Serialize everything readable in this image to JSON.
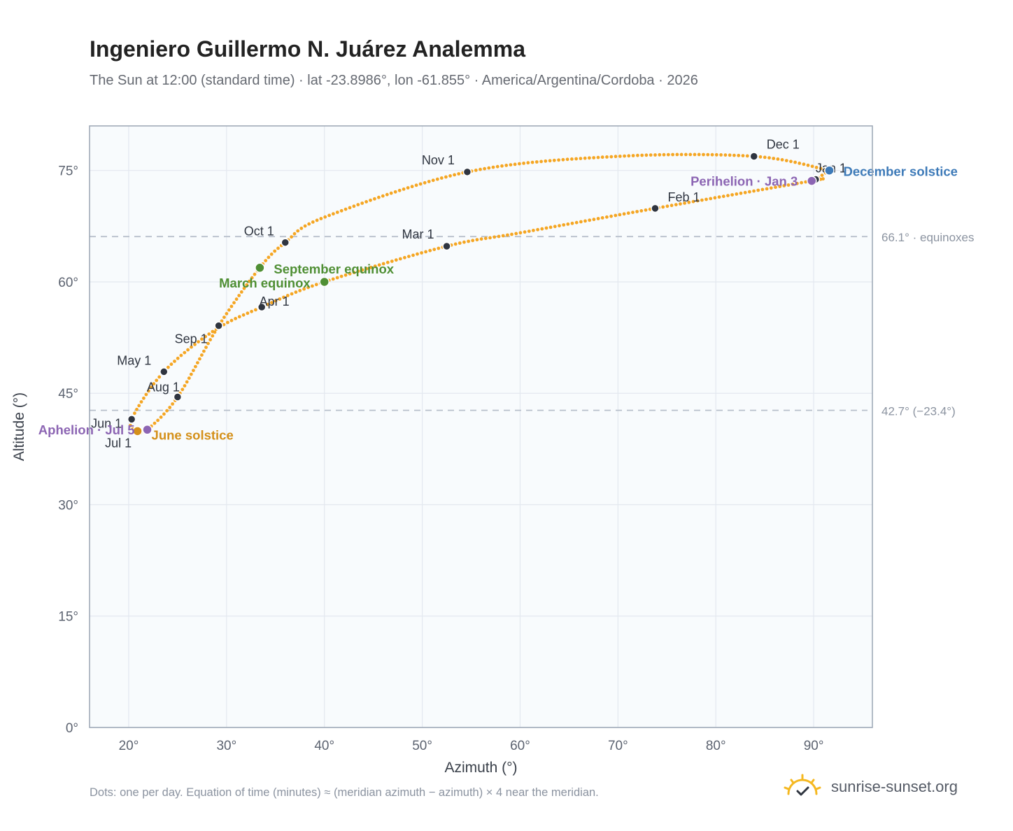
{
  "header": {
    "title": "Ingeniero Guillermo N. Juárez Analemma",
    "subtitle": "The Sun at 12:00 (standard time) · lat -23.8986°, lon -61.855° · America/Argentina/Cordoba · 2026"
  },
  "footer": {
    "note": "Dots: one per day. Equation of time (minutes) ≈ (meridian azimuth − azimuth) × 4 near the meridian.",
    "brand": "sunrise-sunset.org"
  },
  "colors": {
    "path": "#f5a623",
    "month_marker": "#2f3540",
    "solstice_june": "#d4901a",
    "solstice_december": "#3d7ab8",
    "equinox": "#4f8f34",
    "apsis": "#8c65b3",
    "reference_line": "#b8c0cc",
    "plot_background": "#f8fbfd"
  },
  "chart_data": {
    "type": "scatter",
    "xlabel": "Azimuth (°)",
    "ylabel": "Altitude (°)",
    "xlim": [
      16,
      96
    ],
    "ylim": [
      0,
      81
    ],
    "x_ticks": [
      20,
      30,
      40,
      50,
      60,
      70,
      80,
      90
    ],
    "y_ticks": [
      0,
      15,
      30,
      45,
      60,
      75
    ],
    "grid": true,
    "x_tick_suffix": "°",
    "y_tick_suffix": "°",
    "reference_lines": [
      {
        "y": 66.1,
        "label": "66.1° · equinoxes"
      },
      {
        "y": 42.7,
        "label": "42.7° (−23.4°)"
      }
    ],
    "month_markers": [
      {
        "label": "Jan 1",
        "x": 90.2,
        "y": 73.8
      },
      {
        "label": "Feb 1",
        "x": 73.8,
        "y": 69.9
      },
      {
        "label": "Mar 1",
        "x": 52.5,
        "y": 64.8
      },
      {
        "label": "Apr 1",
        "x": 33.6,
        "y": 56.6
      },
      {
        "label": "May 1",
        "x": 23.6,
        "y": 47.9
      },
      {
        "label": "Jun 1",
        "x": 20.3,
        "y": 41.5
      },
      {
        "label": "Jul 1",
        "x": 20.8,
        "y": 39.8
      },
      {
        "label": "Aug 1",
        "x": 25.0,
        "y": 44.5
      },
      {
        "label": "Sep 1",
        "x": 29.2,
        "y": 54.1
      },
      {
        "label": "Oct 1",
        "x": 36.0,
        "y": 65.3
      },
      {
        "label": "Nov 1",
        "x": 54.6,
        "y": 74.8
      },
      {
        "label": "Dec 1",
        "x": 83.9,
        "y": 76.9
      }
    ],
    "events": [
      {
        "label": "June solstice",
        "x": 20.9,
        "y": 39.9,
        "kind": "solstice_june"
      },
      {
        "label": "December solstice",
        "x": 91.6,
        "y": 75.0,
        "kind": "solstice_december"
      },
      {
        "label": "March equinox",
        "x": 40.0,
        "y": 60.0,
        "kind": "equinox"
      },
      {
        "label": "September equinox",
        "x": 33.4,
        "y": 61.9,
        "kind": "equinox"
      },
      {
        "label": "Aphelion · Jul 5",
        "x": 21.9,
        "y": 40.1,
        "kind": "apsis"
      },
      {
        "label": "Perihelion · Jan 3",
        "x": 89.8,
        "y": 73.6,
        "kind": "apsis"
      }
    ],
    "path_anchors": [
      [
        91.6,
        75.0
      ],
      [
        90.2,
        73.8
      ],
      [
        89.8,
        73.6
      ],
      [
        73.8,
        69.9
      ],
      [
        60.0,
        66.6
      ],
      [
        52.5,
        64.8
      ],
      [
        40.0,
        60.0
      ],
      [
        33.6,
        56.6
      ],
      [
        28.8,
        53.5
      ],
      [
        23.6,
        47.9
      ],
      [
        20.3,
        41.5
      ],
      [
        20.9,
        39.9
      ],
      [
        21.9,
        40.1
      ],
      [
        25.0,
        44.5
      ],
      [
        29.2,
        54.1
      ],
      [
        33.4,
        61.9
      ],
      [
        36.0,
        65.3
      ],
      [
        40.0,
        68.7
      ],
      [
        54.6,
        74.8
      ],
      [
        70.0,
        76.9
      ],
      [
        83.9,
        76.9
      ],
      [
        91.6,
        75.0
      ]
    ]
  }
}
